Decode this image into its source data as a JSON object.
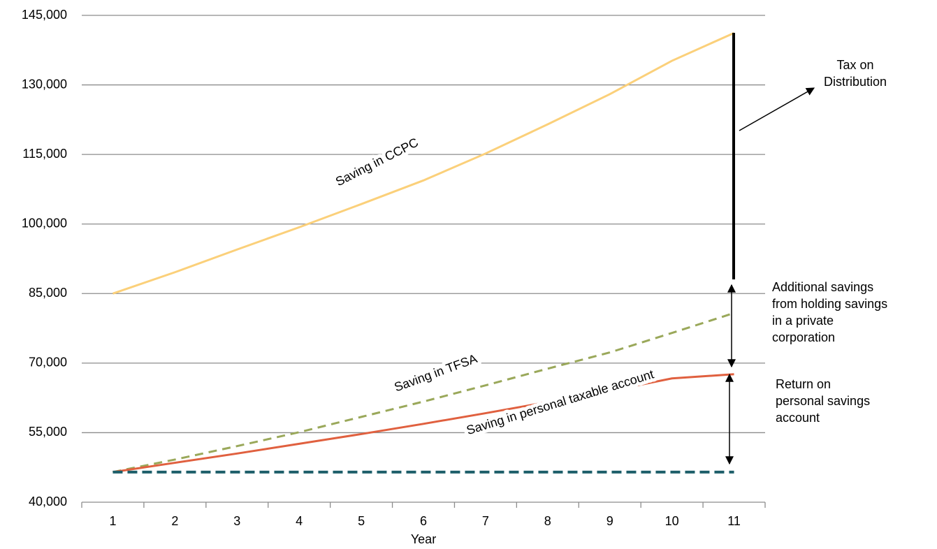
{
  "chart_data": {
    "type": "line",
    "x_label": "Year",
    "categories": [
      "1",
      "2",
      "3",
      "4",
      "5",
      "6",
      "7",
      "8",
      "9",
      "10",
      "11"
    ],
    "series": [
      {
        "color": "#fbd07a",
        "dashed": false,
        "values": [
          85000,
          89600,
          94500,
          99300,
          104300,
          109400,
          115200,
          121500,
          128000,
          135200,
          141200
        ]
      },
      {
        "color": "#9aa85a",
        "dashed": true,
        "values": [
          46500,
          49200,
          52100,
          55100,
          58400,
          61700,
          65200,
          68800,
          72300,
          76500,
          80800
        ]
      },
      {
        "color": "#e0603f",
        "dashed": false,
        "values": [
          46500,
          48500,
          50500,
          52600,
          54700,
          56900,
          59200,
          61600,
          64000,
          66700,
          67600
        ]
      },
      {
        "color": "#1e5f6a",
        "dashed": true,
        "values": [
          46500,
          46500,
          46500,
          46500,
          46500,
          46500,
          46500,
          46500,
          46500,
          46500,
          46500
        ]
      }
    ],
    "ylim": [
      40000,
      145000
    ],
    "yticks": [
      {
        "value": 40000,
        "label": "40,000"
      },
      {
        "value": 55000,
        "label": "55,000"
      },
      {
        "value": 70000,
        "label": "70,000"
      },
      {
        "value": 85000,
        "label": "85,000"
      },
      {
        "value": 100000,
        "label": "100,000"
      },
      {
        "value": 115000,
        "label": "115,000"
      },
      {
        "value": 130000,
        "label": "130,000"
      },
      {
        "value": 145000,
        "label": "145,000"
      }
    ],
    "grid": true,
    "series_labels": [
      "Saving in CCPC",
      "Saving in TFSA",
      "Saving in personal taxable account"
    ],
    "annotations": {
      "tax": [
        "Tax on",
        "Distribution"
      ],
      "additional": [
        "Additional savings",
        "from holding savings",
        "in a private",
        "corporation"
      ],
      "return": [
        "Return on",
        "personal savings",
        "account"
      ]
    }
  }
}
